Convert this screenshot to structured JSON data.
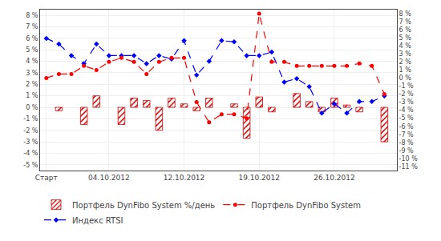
{
  "chart_data": {
    "type": "bar",
    "categories": [
      "Старт",
      null,
      null,
      null,
      null,
      "04.10.2012",
      null,
      null,
      null,
      null,
      null,
      "12.10.2012",
      null,
      null,
      null,
      null,
      null,
      "19.10.2012",
      null,
      null,
      null,
      null,
      null,
      "26.10.2012",
      null,
      null,
      null,
      null
    ],
    "xlim": [
      -0.5,
      28
    ],
    "series": [
      {
        "name": "Портфель DynFibo System %/день",
        "type": "bar",
        "color": "#cc0000",
        "values": [
          null,
          -0.3,
          null,
          -1.5,
          1.0,
          null,
          -1.5,
          0.8,
          0.6,
          -2.0,
          0.8,
          0.3,
          -0.3,
          0.8,
          null,
          0.3,
          -2.7,
          0.9,
          -0.4,
          null,
          1.2,
          0.5,
          -0.4,
          0.8,
          0.2,
          -0.4,
          null,
          -3.0
        ]
      },
      {
        "name": "Портфель DynFibo System",
        "type": "line",
        "axis": "y2",
        "color": "red",
        "marker": "circle",
        "line_style": "dash",
        "values": [
          0.0,
          0.5,
          0.5,
          1.5,
          1.0,
          2.0,
          2.5,
          2.0,
          0.5,
          2.0,
          2.5,
          2.5,
          -3.0,
          -5.5,
          -4.5,
          -4.5,
          -5.0,
          8.0,
          2.0,
          2.0,
          1.5,
          1.5,
          1.5,
          1.5,
          1.5,
          1.8,
          1.5,
          -2.0
        ]
      },
      {
        "name": "Индекс RTSI",
        "type": "line",
        "color": "blue",
        "marker": "diamond",
        "line_style": "dash",
        "values": [
          6.0,
          5.5,
          4.5,
          3.8,
          5.5,
          4.5,
          4.5,
          4.5,
          3.8,
          4.5,
          4.2,
          5.8,
          2.8,
          4.0,
          5.8,
          5.7,
          4.5,
          4.5,
          4.8,
          2.2,
          2.5,
          1.8,
          -0.5,
          0.3,
          -0.5,
          0.5,
          0.5,
          1.0
        ]
      }
    ],
    "ylim": [
      -5.5,
      8.5
    ],
    "yticks": [
      {
        "value": -5,
        "label": "-5 %"
      },
      {
        "value": -4,
        "label": "-4 %"
      },
      {
        "value": -3,
        "label": "-3 %"
      },
      {
        "value": -2,
        "label": "-2 %"
      },
      {
        "value": -1,
        "label": "-1 %"
      },
      {
        "value": 0,
        "label": "0 %"
      },
      {
        "value": 1,
        "label": "1 %"
      },
      {
        "value": 2,
        "label": "2 %"
      },
      {
        "value": 3,
        "label": "3 %"
      },
      {
        "value": 4,
        "label": "4 %"
      },
      {
        "value": 5,
        "label": "5 %"
      },
      {
        "value": 6,
        "label": "6 %"
      },
      {
        "value": 7,
        "label": "7 %"
      },
      {
        "value": 8,
        "label": "8 %"
      }
    ],
    "y2lim": [
      -11.5,
      8.5
    ],
    "y2ticks": [
      {
        "value": -11,
        "label": "-11 %"
      },
      {
        "value": -10,
        "label": "-10 %"
      },
      {
        "value": -9,
        "label": "-9 %"
      },
      {
        "value": -8,
        "label": "-8 %"
      },
      {
        "value": -7,
        "label": "-7 %"
      },
      {
        "value": -6,
        "label": "-6 %"
      },
      {
        "value": -5,
        "label": "-5 %"
      },
      {
        "value": -4,
        "label": "-4 %"
      },
      {
        "value": -3,
        "label": "-3 %"
      },
      {
        "value": -2,
        "label": "-2 %"
      },
      {
        "value": -1,
        "label": "-1 %"
      },
      {
        "value": 0,
        "label": "0 %"
      },
      {
        "value": 1,
        "label": "1 %"
      },
      {
        "value": 2,
        "label": "2 %"
      },
      {
        "value": 3,
        "label": "3 %"
      },
      {
        "value": 4,
        "label": "4 %"
      },
      {
        "value": 5,
        "label": "5 %"
      },
      {
        "value": 6,
        "label": "6 %"
      },
      {
        "value": 7,
        "label": "7 %"
      },
      {
        "value": 8,
        "label": "8 %"
      }
    ],
    "grid": true,
    "legend": "bottom"
  }
}
